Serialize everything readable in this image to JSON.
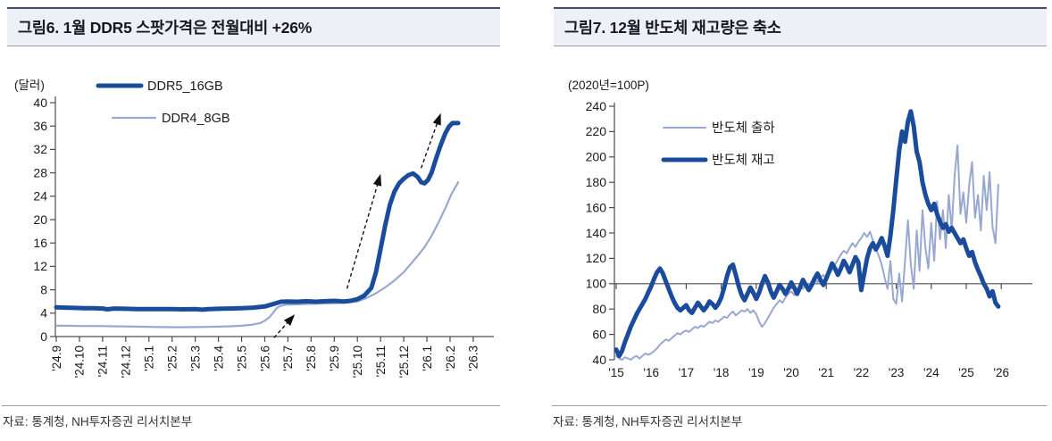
{
  "colors": {
    "primary_line": "#1b4c9c",
    "secondary_line": "#98a8d0",
    "axis": "#4d4d4d",
    "annotation": "#111111",
    "header_bg": "#edf1f7",
    "header_top_border": "#3f4f6d"
  },
  "panels": [
    {
      "title": "그림6. 1월 DDR5 스팟가격은 전월대비 +26%",
      "source": "자료: 통계청, NH투자증권 리서치본부"
    },
    {
      "title": "그림7. 12월 반도체 재고량은 축소",
      "source": "자료: 통계청, NH투자증권 리서치본부"
    }
  ],
  "chart_data": [
    {
      "type": "line",
      "title": "그림6. 1월 DDR5 스팟가격은 전월대비 +26%",
      "unit_label": "(달러)",
      "ylabel": "달러",
      "ylim": [
        0,
        40
      ],
      "ytick_step": 4,
      "grid": false,
      "legend_position": "top-left",
      "x_tick_labels": [
        "'24.9",
        "'24.10",
        "'24.11",
        "'24.12",
        "'25.1",
        "'25.2",
        "'25.3",
        "'25.4",
        "'25.5",
        "'25.6",
        "'25.7",
        "'25.8",
        "'25.9",
        "'25.10",
        "'25.11",
        "'25.12",
        "'26.1",
        "'26.2",
        "'26.3"
      ],
      "x_unit": "months_from_2024_09",
      "series": [
        {
          "name": "DDR5_16GB",
          "color": "#1b4c9c",
          "width": 5,
          "points": [
            [
              0,
              5.0
            ],
            [
              0.4,
              4.95
            ],
            [
              0.8,
              4.9
            ],
            [
              1.2,
              4.85
            ],
            [
              1.6,
              4.85
            ],
            [
              2.0,
              4.8
            ],
            [
              2.2,
              4.65
            ],
            [
              2.5,
              4.8
            ],
            [
              3.0,
              4.75
            ],
            [
              3.5,
              4.7
            ],
            [
              4.0,
              4.7
            ],
            [
              4.5,
              4.68
            ],
            [
              5.0,
              4.7
            ],
            [
              5.5,
              4.65
            ],
            [
              6.0,
              4.7
            ],
            [
              6.3,
              4.6
            ],
            [
              6.6,
              4.7
            ],
            [
              7.0,
              4.75
            ],
            [
              7.5,
              4.8
            ],
            [
              8.0,
              4.85
            ],
            [
              8.5,
              4.95
            ],
            [
              9.0,
              5.15
            ],
            [
              9.4,
              5.6
            ],
            [
              9.7,
              5.95
            ],
            [
              10.0,
              6.0
            ],
            [
              10.4,
              5.95
            ],
            [
              10.8,
              6.05
            ],
            [
              11.2,
              5.95
            ],
            [
              11.6,
              6.05
            ],
            [
              12.0,
              6.1
            ],
            [
              12.4,
              6.0
            ],
            [
              12.7,
              6.1
            ],
            [
              13.0,
              6.4
            ],
            [
              13.3,
              7.0
            ],
            [
              13.6,
              8.3
            ],
            [
              13.8,
              11.0
            ],
            [
              14.0,
              15.0
            ],
            [
              14.2,
              19.0
            ],
            [
              14.4,
              22.5
            ],
            [
              14.6,
              24.8
            ],
            [
              14.8,
              26.2
            ],
            [
              15.0,
              27.0
            ],
            [
              15.2,
              27.6
            ],
            [
              15.4,
              27.9
            ],
            [
              15.6,
              27.3
            ],
            [
              15.75,
              26.4
            ],
            [
              15.9,
              26.2
            ],
            [
              16.05,
              26.8
            ],
            [
              16.2,
              28.0
            ],
            [
              16.4,
              30.5
            ],
            [
              16.6,
              32.8
            ],
            [
              16.8,
              34.8
            ],
            [
              16.95,
              35.9
            ],
            [
              17.1,
              36.5
            ],
            [
              17.35,
              36.5
            ]
          ]
        },
        {
          "name": "DDR4_8GB",
          "color": "#98a8d0",
          "width": 2.2,
          "points": [
            [
              0,
              1.85
            ],
            [
              0.5,
              1.85
            ],
            [
              1.0,
              1.8
            ],
            [
              1.5,
              1.8
            ],
            [
              2.0,
              1.78
            ],
            [
              2.5,
              1.75
            ],
            [
              3.0,
              1.72
            ],
            [
              3.5,
              1.7
            ],
            [
              4.0,
              1.65
            ],
            [
              4.5,
              1.62
            ],
            [
              5.0,
              1.6
            ],
            [
              5.5,
              1.6
            ],
            [
              6.0,
              1.62
            ],
            [
              6.5,
              1.65
            ],
            [
              7.0,
              1.7
            ],
            [
              7.5,
              1.75
            ],
            [
              8.0,
              1.85
            ],
            [
              8.4,
              2.0
            ],
            [
              8.8,
              2.3
            ],
            [
              9.0,
              2.7
            ],
            [
              9.2,
              3.3
            ],
            [
              9.35,
              4.0
            ],
            [
              9.5,
              4.8
            ],
            [
              9.65,
              5.2
            ],
            [
              9.9,
              5.45
            ],
            [
              10.3,
              5.5
            ],
            [
              10.7,
              5.55
            ],
            [
              11.1,
              5.6
            ],
            [
              11.5,
              5.65
            ],
            [
              12.0,
              5.7
            ],
            [
              12.5,
              5.8
            ],
            [
              13.0,
              6.0
            ],
            [
              13.4,
              6.6
            ],
            [
              13.8,
              7.4
            ],
            [
              14.2,
              8.4
            ],
            [
              14.6,
              9.6
            ],
            [
              15.0,
              11.0
            ],
            [
              15.3,
              12.4
            ],
            [
              15.6,
              13.8
            ],
            [
              15.9,
              15.3
            ],
            [
              16.2,
              17.2
            ],
            [
              16.5,
              19.5
            ],
            [
              16.8,
              22.0
            ],
            [
              17.05,
              24.3
            ],
            [
              17.35,
              26.4
            ]
          ]
        }
      ],
      "annotations": {
        "arrows": [
          {
            "from": [
              9.4,
              -0.2
            ],
            "to": [
              10.3,
              3.8
            ]
          },
          {
            "from": [
              12.55,
              8.2
            ],
            "to": [
              14.0,
              27.8
            ]
          },
          {
            "from": [
              15.75,
              28.8
            ],
            "to": [
              16.6,
              38.2
            ]
          }
        ]
      }
    },
    {
      "type": "line",
      "title": "그림7. 12월 반도체 재고량은 축소",
      "unit_label": "(2020년=100P)",
      "ylim": [
        40,
        240
      ],
      "ytick_step": 20,
      "grid": false,
      "x_axis_crosses_at": 100,
      "legend_position": "top-left",
      "x_tick_labels": [
        "'15",
        "'16",
        "'17",
        "'18",
        "'19",
        "'20",
        "'21",
        "'22",
        "'23",
        "'24",
        "'25",
        "'26"
      ],
      "x_unit": "monthly_from_2015_01",
      "series": [
        {
          "name": "반도체 출하",
          "color": "#98a8d0",
          "width": 2,
          "values": [
            43,
            41,
            40,
            42,
            41,
            40,
            42,
            43,
            41,
            43,
            45,
            44,
            45,
            47,
            49,
            52,
            54,
            56,
            55,
            57,
            59,
            61,
            60,
            62,
            63,
            62,
            64,
            66,
            65,
            67,
            66,
            68,
            70,
            69,
            71,
            70,
            72,
            74,
            73,
            76,
            78,
            75,
            77,
            79,
            78,
            80,
            77,
            79,
            76,
            70,
            66,
            69,
            73,
            77,
            81,
            84,
            87,
            85,
            89,
            92,
            94,
            91,
            95,
            98,
            96,
            100,
            98,
            102,
            104,
            101,
            105,
            107,
            103,
            107,
            111,
            115,
            119,
            123,
            126,
            124,
            128,
            132,
            129,
            133,
            136,
            140,
            137,
            141,
            134,
            128,
            122,
            115,
            105,
            96,
            118,
            88,
            84,
            108,
            86,
            118,
            150,
            115,
            96,
            142,
            110,
            158,
            128,
            112,
            148,
            118,
            165,
            135,
            158,
            128,
            170,
            142,
            185,
            209,
            155,
            172,
            148,
            178,
            196,
            152,
            170,
            142,
            185,
            158,
            188,
            145,
            132,
            178
          ]
        },
        {
          "name": "반도체 재고",
          "color": "#1b4c9c",
          "width": 5,
          "values": [
            48,
            43,
            47,
            54,
            60,
            66,
            71,
            76,
            80,
            84,
            88,
            93,
            98,
            104,
            109,
            112,
            108,
            102,
            96,
            90,
            85,
            81,
            79,
            81,
            83,
            79,
            77,
            81,
            85,
            82,
            79,
            82,
            86,
            84,
            81,
            84,
            89,
            97,
            106,
            113,
            115,
            107,
            98,
            91,
            87,
            92,
            97,
            93,
            88,
            93,
            100,
            106,
            101,
            94,
            89,
            94,
            99,
            96,
            92,
            96,
            101,
            97,
            92,
            97,
            103,
            99,
            95,
            99,
            104,
            108,
            103,
            99,
            104,
            110,
            116,
            112,
            107,
            112,
            118,
            114,
            109,
            115,
            121,
            117,
            95,
            108,
            120,
            128,
            132,
            127,
            131,
            136,
            130,
            122,
            138,
            158,
            182,
            205,
            220,
            212,
            228,
            236,
            224,
            204,
            196,
            180,
            170,
            163,
            158,
            163,
            155,
            149,
            144,
            147,
            141,
            144,
            140,
            136,
            132,
            135,
            128,
            122,
            125,
            117,
            111,
            106,
            100,
            96,
            90,
            94,
            85,
            82
          ]
        }
      ]
    }
  ]
}
